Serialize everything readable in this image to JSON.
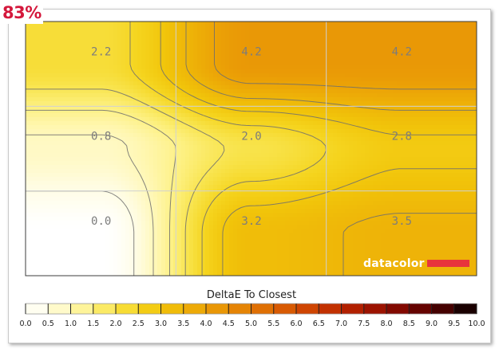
{
  "badge": {
    "uniformity": "83%"
  },
  "brand": {
    "logo_text": "datacolor",
    "accent": "#e8343c"
  },
  "chart_data": {
    "type": "heatmap",
    "title": "",
    "legend_title": "DeltaE To Closest",
    "grid_rows": 3,
    "grid_cols": 3,
    "cell_values": [
      [
        "2.2",
        "4.2",
        "4.2"
      ],
      [
        "0.8",
        "2.0",
        "2.8"
      ],
      [
        "0.0",
        "3.2",
        "3.5"
      ]
    ],
    "gridlines": true,
    "colorbar": {
      "ticks": [
        "0.0",
        "0.5",
        "1.0",
        "1.5",
        "2.0",
        "2.5",
        "3.0",
        "3.5",
        "4.0",
        "4.5",
        "5.0",
        "5.5",
        "6.0",
        "6.5",
        "7.0",
        "7.5",
        "8.0",
        "8.5",
        "9.0",
        "9.5",
        "10.0"
      ],
      "range": [
        0,
        10
      ],
      "colors": [
        "#ffffff",
        "#fffce0",
        "#fff7b3",
        "#fdf080",
        "#f8e34a",
        "#f5d41e",
        "#f1c40a",
        "#eeb308",
        "#eba006",
        "#e78d05",
        "#e27a04",
        "#dc6503",
        "#d44f02",
        "#c93a01",
        "#bb2700",
        "#a81800",
        "#8f0d00",
        "#740500",
        "#560100",
        "#340000",
        "#000000"
      ]
    }
  }
}
